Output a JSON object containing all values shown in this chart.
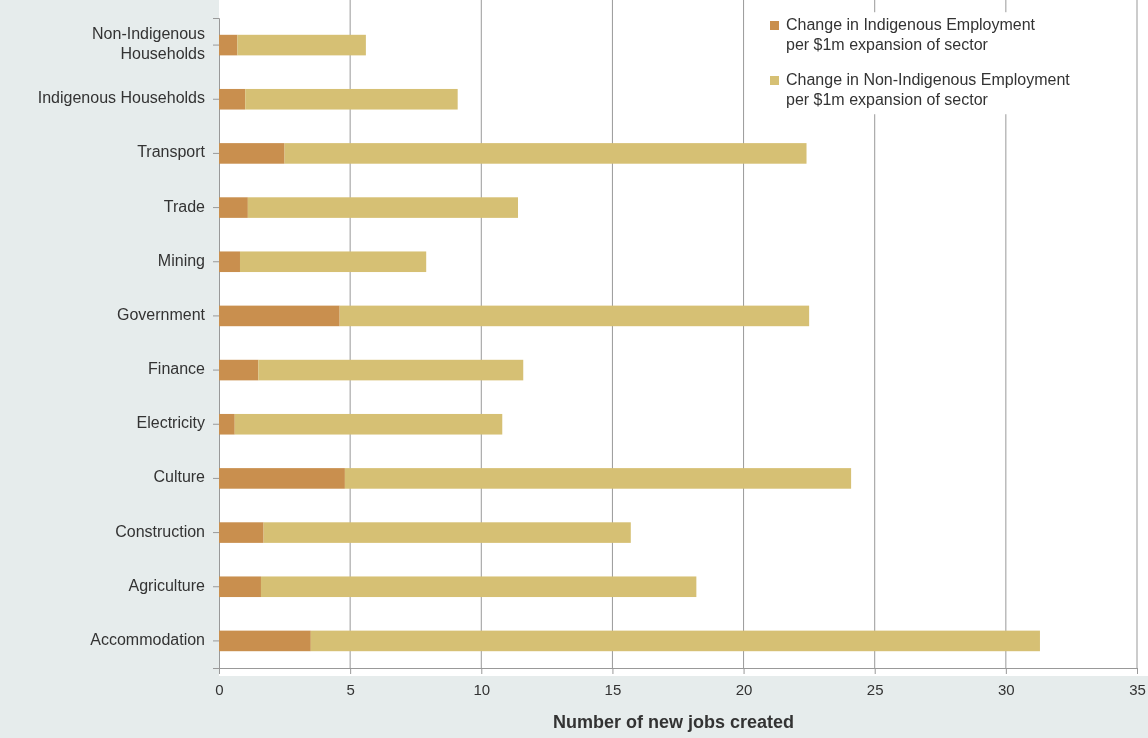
{
  "chart_data": {
    "type": "bar",
    "orientation": "horizontal",
    "stacked": true,
    "xlabel": "Number of new jobs created",
    "categories": [
      "Non-Indigenous Households",
      "Indigenous Households",
      "Transport",
      "Trade",
      "Mining",
      "Government",
      "Finance",
      "Electricity",
      "Culture",
      "Construction",
      "Agriculture",
      "Accommodation"
    ],
    "series": [
      {
        "name": "Change in Indigenous Employment per $1m expansion of sector",
        "color": "#c98f4e",
        "values": [
          0.7,
          1.0,
          2.5,
          1.1,
          0.8,
          4.6,
          1.5,
          0.6,
          4.8,
          1.7,
          1.6,
          3.5
        ]
      },
      {
        "name": "Change in Non-Indigenous Employment per $1m expansion of sector",
        "color": "#d6c074",
        "values": [
          4.9,
          8.1,
          19.9,
          10.3,
          7.1,
          17.9,
          10.1,
          10.2,
          19.3,
          14.0,
          16.6,
          27.8
        ]
      }
    ],
    "xlim": [
      0,
      35
    ],
    "xticks": [
      0,
      5,
      10,
      15,
      20,
      25,
      30,
      35
    ],
    "grid": "x",
    "legend": "top right"
  }
}
